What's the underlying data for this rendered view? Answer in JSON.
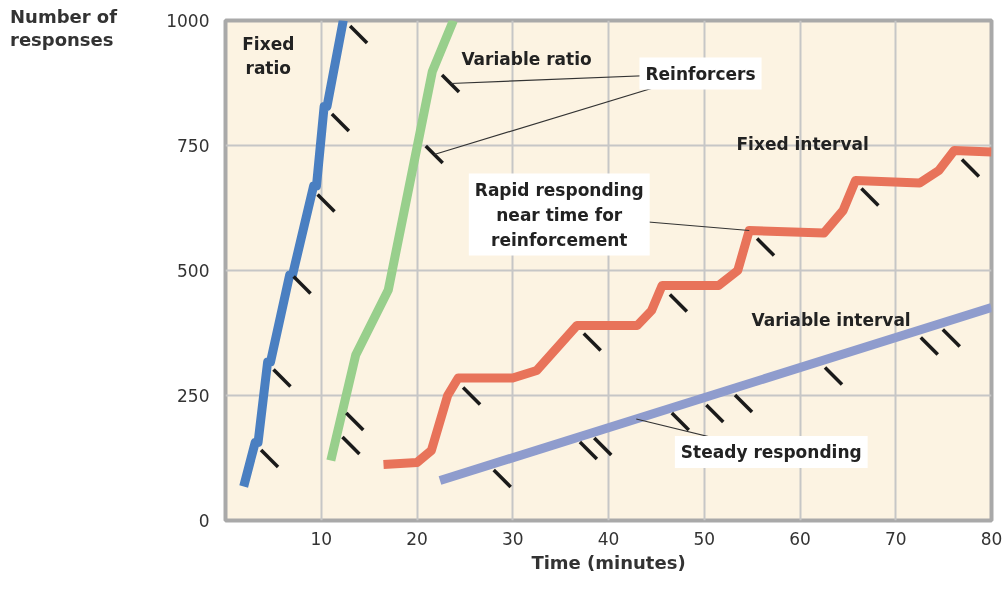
{
  "chart_data": {
    "type": "line",
    "xlabel": "Time (minutes)",
    "ylabel": "Number of responses",
    "xlim": [
      0,
      80
    ],
    "xticks": [
      10,
      20,
      30,
      40,
      50,
      60,
      70,
      80
    ],
    "ylim": [
      0,
      1000
    ],
    "yticks": [
      0,
      250,
      500,
      750,
      1000
    ],
    "grid": true,
    "line_style": "solid",
    "series": [
      {
        "name": "Fixed ratio",
        "color": "#4a7fc1",
        "x": [
          1.9,
          3.1,
          3.4,
          4.4,
          4.7,
          6.7,
          7.0,
          9.2,
          9.5,
          10.3,
          10.6,
          12.3
        ],
        "values": [
          68,
          156,
          156,
          317,
          317,
          491,
          491,
          669,
          669,
          828,
          828,
          1000
        ]
      },
      {
        "name": "Variable ratio",
        "color": "#98cf8c",
        "x": [
          11.0,
          13.6,
          17.0,
          21.6,
          23.8
        ],
        "values": [
          120,
          331,
          461,
          898,
          1000
        ]
      },
      {
        "name": "Fixed interval",
        "color": "#e8735a",
        "x": [
          16.5,
          20.0,
          21.5,
          23.2,
          24.3,
          30.0,
          32.5,
          36.7,
          43.0,
          44.5,
          45.6,
          51.5,
          53.5,
          54.7,
          62.5,
          64.5,
          65.8,
          72.5,
          74.5,
          76.1,
          80
        ],
        "values": [
          112,
          116,
          140,
          250,
          285,
          285,
          300,
          390,
          390,
          420,
          470,
          470,
          500,
          580,
          575,
          620,
          680,
          675,
          700,
          740,
          737
        ]
      },
      {
        "name": "Variable interval",
        "color": "#8f9ccd",
        "x": [
          22.4,
          80
        ],
        "values": [
          80,
          426
        ]
      },
      {
        "type": "scatter",
        "color": "#1a1a1a",
        "x": [
          4.6,
          5.9,
          8.0,
          10.5,
          12.0,
          13.9,
          13.1,
          13.5,
          21.8,
          23.5,
          25.7,
          38.3,
          47.3,
          56.4,
          67.3,
          77.8,
          28.9,
          37.9,
          39.4,
          47.5,
          51.1,
          54.1,
          63.5,
          73.5,
          75.8
        ],
        "values": [
          124,
          285,
          471,
          635,
          796,
          972,
          150,
          198,
          732,
          874,
          249,
          357,
          435,
          547,
          647,
          705,
          84,
          140,
          148,
          198,
          214,
          234,
          289,
          349,
          365
        ]
      }
    ],
    "annotations": [
      {
        "text": "Reinforcers",
        "x": 23.5,
        "y": 874
      },
      {
        "text": "Rapid responding near time for reinforcement",
        "x": 54.7,
        "y": 580
      },
      {
        "text": "Steady responding",
        "x": 42.9,
        "y": 203
      }
    ]
  }
}
